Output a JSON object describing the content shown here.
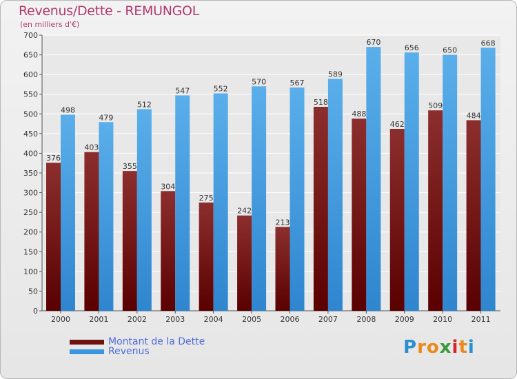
{
  "title": "Revenus/Dette - REMUNGOL",
  "subtitle": "(en milliers d'€)",
  "logo": {
    "text": "Proxiti",
    "letters": [
      "P",
      "r",
      "o",
      "x",
      "i",
      "t",
      "i"
    ],
    "colors": [
      "#2a8fd0",
      "#e98a1c",
      "#e98a1c",
      "#3a9a3a",
      "#d9232a",
      "#e98a1c",
      "#2a8fd0"
    ]
  },
  "chart_data": {
    "type": "bar",
    "categories": [
      "2000",
      "2001",
      "2002",
      "2003",
      "2004",
      "2005",
      "2006",
      "2007",
      "2008",
      "2009",
      "2010",
      "2011"
    ],
    "series": [
      {
        "name": "Montant de la Dette",
        "color": "#7a1c1c",
        "values": [
          376,
          403,
          355,
          304,
          275,
          242,
          213,
          518,
          488,
          462,
          509,
          484
        ]
      },
      {
        "name": "Revenus",
        "color": "#3a97df",
        "values": [
          498,
          479,
          512,
          547,
          552,
          570,
          567,
          589,
          670,
          656,
          650,
          668
        ]
      }
    ],
    "ylim": [
      0,
      700
    ],
    "yticks": [
      0,
      50,
      100,
      150,
      200,
      250,
      300,
      350,
      400,
      450,
      500,
      550,
      600,
      650,
      700
    ],
    "grid": true,
    "legend_position": "bottom-left"
  }
}
